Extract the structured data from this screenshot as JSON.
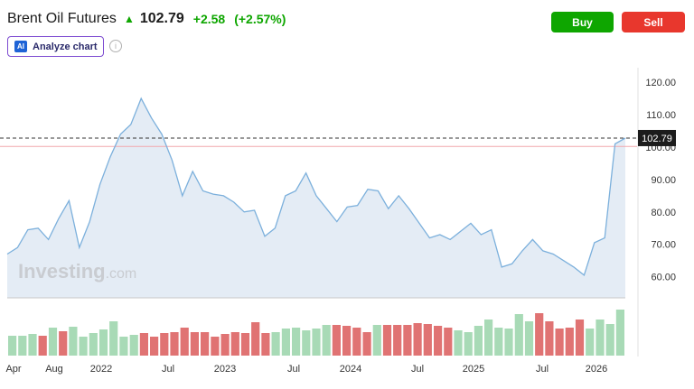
{
  "header": {
    "title": "Brent Oil Futures",
    "arrow_icon": "arrow-up-icon",
    "price": "102.79",
    "change": "+2.58",
    "change_pct": "(+2.57%)"
  },
  "actions": {
    "buy_label": "Buy",
    "sell_label": "Sell"
  },
  "analyze": {
    "badge": "AI",
    "label": "Analyze chart",
    "info": "i"
  },
  "colors": {
    "up": "#0ea600",
    "down": "#e8372d",
    "line": "#7cb0dc",
    "area": "#e4ecf5",
    "vol_up": "#a8dab6",
    "vol_down": "#e07373"
  },
  "watermark": {
    "brand": "Investing",
    "suffix": ".com"
  },
  "chart_data": {
    "type": "area",
    "y_ticks": [
      "120.00",
      "110.00",
      "100.00",
      "90.00",
      "80.00",
      "70.00",
      "60.00"
    ],
    "ylim": [
      53.5,
      124.5
    ],
    "x_ticks": [
      "Apr",
      "Aug",
      "2022",
      "Jul",
      "2023",
      "Jul",
      "2024",
      "Jul",
      "2025",
      "Jul",
      "2026"
    ],
    "last_price_label": "102.79",
    "last_price": 102.79,
    "reference_price": 100.21,
    "grid": false,
    "values": [
      67,
      69,
      74.5,
      75,
      71.5,
      78,
      83.5,
      69,
      77,
      88.5,
      97,
      104,
      107,
      115,
      109,
      104,
      96,
      85,
      92.5,
      86.5,
      85.5,
      85,
      83,
      80,
      80.5,
      72.5,
      75,
      85,
      86.5,
      92,
      85,
      81,
      77,
      81.5,
      82,
      87,
      86.5,
      81,
      85,
      81,
      76.5,
      72,
      73,
      71.5,
      74,
      76.5,
      73,
      74.5,
      63,
      64,
      68,
      71.5,
      68,
      67,
      65,
      63,
      60.5,
      70.5,
      72,
      101,
      102.79
    ],
    "volume_up": [
      true,
      true,
      true,
      false,
      true,
      false,
      true,
      true,
      true,
      true,
      true,
      true,
      true,
      false,
      false,
      false,
      false,
      false,
      false,
      false,
      false,
      false,
      false,
      false,
      false,
      false,
      true,
      true,
      true,
      true,
      true,
      true,
      false,
      false,
      false,
      false,
      true,
      false,
      false,
      false,
      false,
      false,
      false,
      false,
      true,
      true,
      true,
      true,
      true,
      true,
      true,
      true,
      false,
      false,
      false,
      false,
      false,
      true,
      true,
      true,
      true
    ],
    "volume": [
      22,
      22,
      24,
      22,
      31,
      27,
      32,
      21,
      25,
      29,
      38,
      21,
      23,
      25,
      21,
      25,
      26,
      31,
      26,
      26,
      21,
      24,
      26,
      25,
      37,
      25,
      26,
      30,
      31,
      28,
      30,
      34,
      34,
      33,
      31,
      26,
      34,
      34,
      34,
      34,
      36,
      35,
      33,
      31,
      28,
      26,
      33,
      40,
      31,
      30,
      46,
      38,
      47,
      38,
      30,
      31,
      40,
      30,
      40,
      35,
      51
    ]
  }
}
